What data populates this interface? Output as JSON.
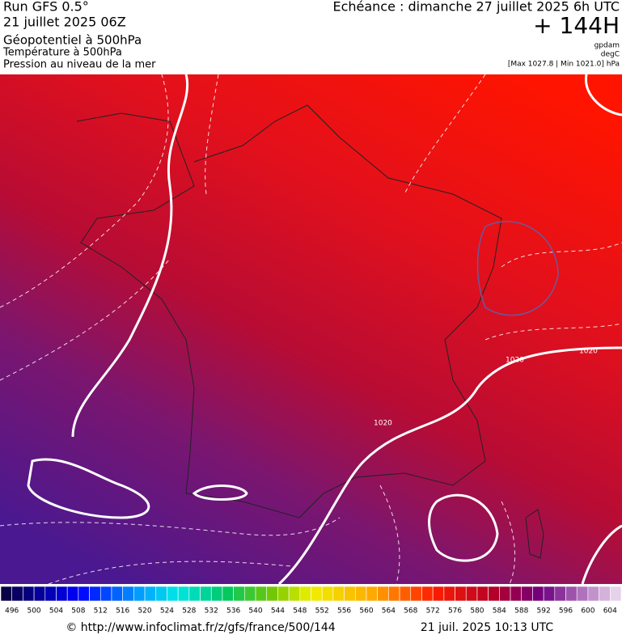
{
  "header": {
    "run": "Run GFS 0.5°",
    "run_date": "21 juillet 2025 06Z",
    "field_1": "Géopotentiel à 500hPa",
    "field_2": "Température à 500hPa",
    "field_3": "Pression au niveau de la mer",
    "valid_time": "Echéance : dimanche 27 juillet 2025 6h UTC",
    "lead": "+ 144H",
    "unit_1": "gpdam",
    "unit_2": "degC",
    "pressure_range": "[Max 1027.8 | Min 1021.0] hPa"
  },
  "map": {
    "contour_labels": [
      "1020",
      "1020",
      "1020"
    ]
  },
  "legend": {
    "labels": [
      "496",
      "500",
      "504",
      "508",
      "512",
      "516",
      "520",
      "524",
      "528",
      "532",
      "536",
      "540",
      "544",
      "548",
      "552",
      "556",
      "560",
      "564",
      "568",
      "572",
      "576",
      "580",
      "584",
      "588",
      "592",
      "596",
      "600",
      "604"
    ]
  },
  "footer": {
    "url": "© http://www.infoclimat.fr/z/gfs/france/500/144",
    "generated": "21 juil. 2025 10:13 UTC"
  }
}
